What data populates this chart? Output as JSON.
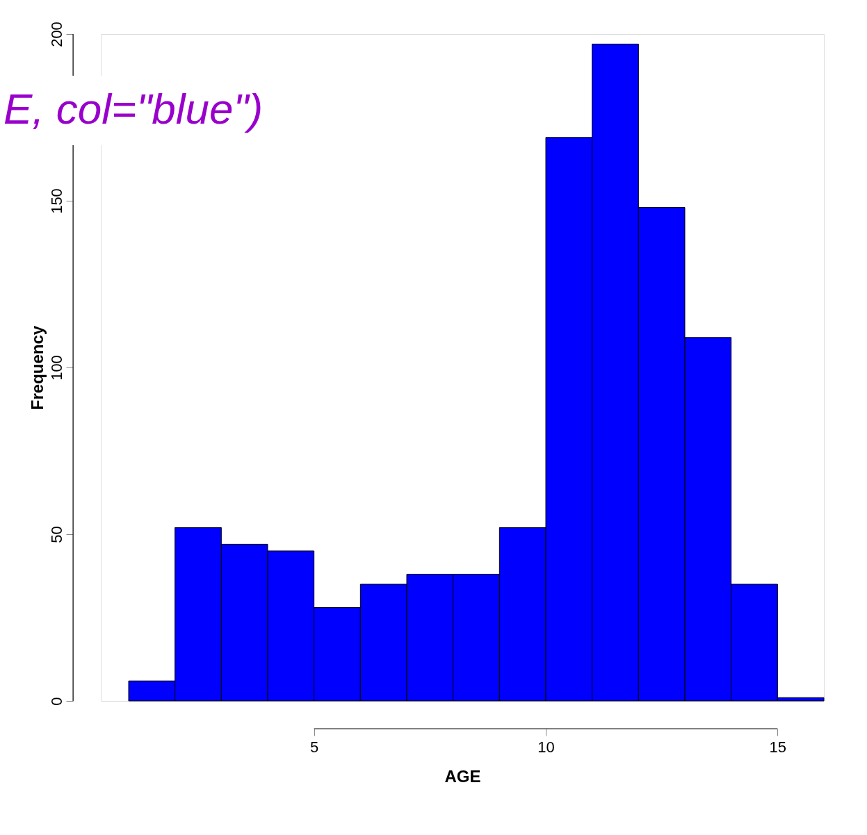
{
  "chart_data": {
    "type": "histogram",
    "xlabel": "AGE",
    "ylabel": "Frequency",
    "bins": [
      1,
      2,
      3,
      4,
      5,
      6,
      7,
      8,
      9,
      10,
      11,
      12,
      13,
      14,
      15,
      16
    ],
    "values": [
      6,
      52,
      47,
      45,
      28,
      35,
      38,
      38,
      52,
      169,
      197,
      148,
      109,
      35,
      1
    ],
    "color": "#0000ff",
    "xlim": [
      0.4,
      16
    ],
    "xticks": [
      5,
      10,
      15
    ],
    "ylim": [
      0,
      200
    ],
    "yticks": [
      0,
      50,
      100,
      150,
      200
    ],
    "grid": false,
    "annotations": [
      "E, col=\"blue\")"
    ]
  }
}
